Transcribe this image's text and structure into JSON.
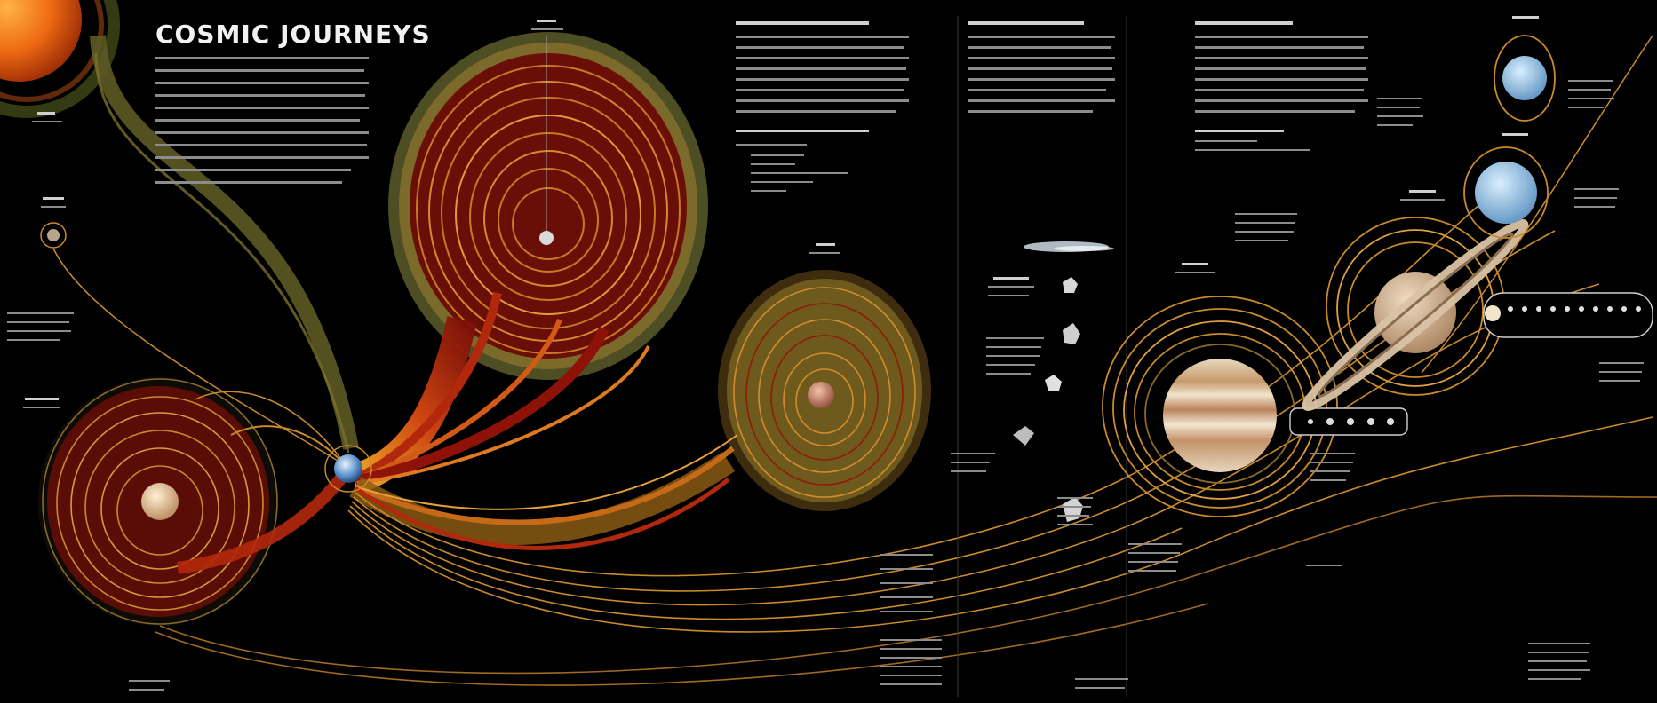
{
  "title": "COSMIC JOURNEYS",
  "colors": {
    "background": "#000000",
    "sun": "#e8560e",
    "trajectory_red": "#8e1208",
    "trajectory_orange": "#d9701a",
    "trajectory_olive": "#6f6a2a",
    "orbit_gold": "#c98a2c",
    "text_gray": "#a9a9a9"
  },
  "icons": [
    "sun-icon",
    "mercury-icon",
    "venus-icon",
    "earth-icon",
    "moon-icon",
    "mars-icon",
    "comet-icon",
    "asteroid-icon",
    "jupiter-icon",
    "saturn-icon",
    "uranus-icon",
    "neptune-icon",
    "pluto-icon"
  ]
}
